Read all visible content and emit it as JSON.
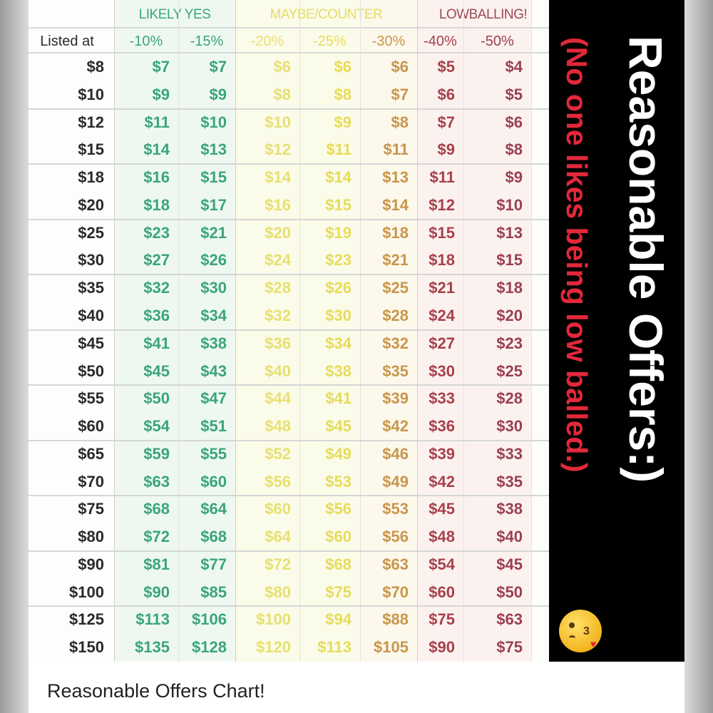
{
  "groups": [
    {
      "label": "LIKELY YES",
      "color": "#3aa57a"
    },
    {
      "label": "MAYBE/COUNTER",
      "color": "#e6dc6a"
    },
    {
      "label": "LOWBALLING!",
      "color": "#9a4a52"
    }
  ],
  "columns": [
    "Listed at",
    "-10%",
    "-15%",
    "-20%",
    "-25%",
    "-30%",
    "-40%",
    "-50%"
  ],
  "column_colors": [
    "#2a2a2a",
    "#3aa57a",
    "#3aa57a",
    "#e8e070",
    "#e6dc5a",
    "#c8964c",
    "#a8404a",
    "#9a4050"
  ],
  "rows": [
    [
      "$8",
      "$7",
      "$7",
      "$6",
      "$6",
      "$6",
      "$5",
      "$4"
    ],
    [
      "$10",
      "$9",
      "$9",
      "$8",
      "$8",
      "$7",
      "$6",
      "$5"
    ],
    [
      "$12",
      "$11",
      "$10",
      "$10",
      "$9",
      "$8",
      "$7",
      "$6"
    ],
    [
      "$15",
      "$14",
      "$13",
      "$12",
      "$11",
      "$11",
      "$9",
      "$8"
    ],
    [
      "$18",
      "$16",
      "$15",
      "$14",
      "$14",
      "$13",
      "$11",
      "$9"
    ],
    [
      "$20",
      "$18",
      "$17",
      "$16",
      "$15",
      "$14",
      "$12",
      "$10"
    ],
    [
      "$25",
      "$23",
      "$21",
      "$20",
      "$19",
      "$18",
      "$15",
      "$13"
    ],
    [
      "$30",
      "$27",
      "$26",
      "$24",
      "$23",
      "$21",
      "$18",
      "$15"
    ],
    [
      "$35",
      "$32",
      "$30",
      "$28",
      "$26",
      "$25",
      "$21",
      "$18"
    ],
    [
      "$40",
      "$36",
      "$34",
      "$32",
      "$30",
      "$28",
      "$24",
      "$20"
    ],
    [
      "$45",
      "$41",
      "$38",
      "$36",
      "$34",
      "$32",
      "$27",
      "$23"
    ],
    [
      "$50",
      "$45",
      "$43",
      "$40",
      "$38",
      "$35",
      "$30",
      "$25"
    ],
    [
      "$55",
      "$50",
      "$47",
      "$44",
      "$41",
      "$39",
      "$33",
      "$28"
    ],
    [
      "$60",
      "$54",
      "$51",
      "$48",
      "$45",
      "$42",
      "$36",
      "$30"
    ],
    [
      "$65",
      "$59",
      "$55",
      "$52",
      "$49",
      "$46",
      "$39",
      "$33"
    ],
    [
      "$70",
      "$63",
      "$60",
      "$56",
      "$53",
      "$49",
      "$42",
      "$35"
    ],
    [
      "$75",
      "$68",
      "$64",
      "$60",
      "$56",
      "$53",
      "$45",
      "$38"
    ],
    [
      "$80",
      "$72",
      "$68",
      "$64",
      "$60",
      "$56",
      "$48",
      "$40"
    ],
    [
      "$90",
      "$81",
      "$77",
      "$72",
      "$68",
      "$63",
      "$54",
      "$45"
    ],
    [
      "$100",
      "$90",
      "$85",
      "$80",
      "$75",
      "$70",
      "$60",
      "$50"
    ],
    [
      "$125",
      "$113",
      "$106",
      "$100",
      "$94",
      "$88",
      "$75",
      "$63"
    ],
    [
      "$150",
      "$135",
      "$128",
      "$120",
      "$113",
      "$105",
      "$90",
      "$75"
    ]
  ],
  "side_panel": {
    "title": "Reasonable Offers:)",
    "subtitle": "(No one likes being low balled.)",
    "subtitle_color": "#e2283a",
    "emoji": "kissing-face-with-heart"
  },
  "caption": "Reasonable Offers Chart!"
}
